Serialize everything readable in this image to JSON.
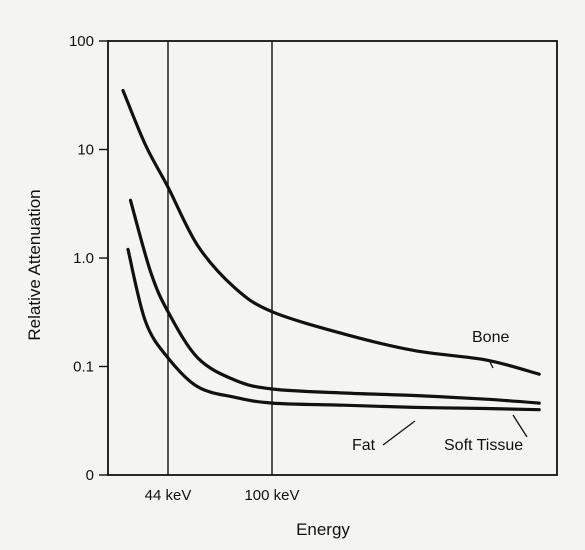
{
  "chart_data": {
    "type": "line",
    "title": "",
    "xlabel": "Energy",
    "ylabel": "Relative Attenuation",
    "yscale": "log",
    "ylim": [
      0.01,
      100
    ],
    "y_ticks": [
      {
        "value": 0.01,
        "label": "0"
      },
      {
        "value": 0.1,
        "label": "0.1"
      },
      {
        "value": 1,
        "label": "1.0"
      },
      {
        "value": 10,
        "label": "10"
      },
      {
        "value": 100,
        "label": "100"
      }
    ],
    "xlim_keV": [
      20,
      180
    ],
    "x_markers": [
      {
        "value": 44,
        "label": "44 keV"
      },
      {
        "value": 100,
        "label": "100 keV"
      }
    ],
    "grid": false,
    "series": [
      {
        "name": "Bone",
        "points": [
          [
            26,
            35
          ],
          [
            35,
            11
          ],
          [
            44,
            4.5
          ],
          [
            60,
            1.3
          ],
          [
            80,
            0.53
          ],
          [
            100,
            0.32
          ],
          [
            120,
            0.2
          ],
          [
            140,
            0.14
          ],
          [
            160,
            0.115
          ],
          [
            175,
            0.085
          ]
        ]
      },
      {
        "name": "Soft Tissue",
        "points": [
          [
            29,
            3.4
          ],
          [
            37,
            0.75
          ],
          [
            44,
            0.32
          ],
          [
            60,
            0.12
          ],
          [
            80,
            0.075
          ],
          [
            100,
            0.062
          ],
          [
            120,
            0.057
          ],
          [
            140,
            0.054
          ],
          [
            160,
            0.05
          ],
          [
            175,
            0.046
          ]
        ]
      },
      {
        "name": "Fat",
        "points": [
          [
            28,
            1.2
          ],
          [
            35,
            0.26
          ],
          [
            44,
            0.12
          ],
          [
            60,
            0.065
          ],
          [
            80,
            0.052
          ],
          [
            100,
            0.046
          ],
          [
            120,
            0.044
          ],
          [
            140,
            0.042
          ],
          [
            160,
            0.041
          ],
          [
            175,
            0.04
          ]
        ]
      }
    ]
  }
}
